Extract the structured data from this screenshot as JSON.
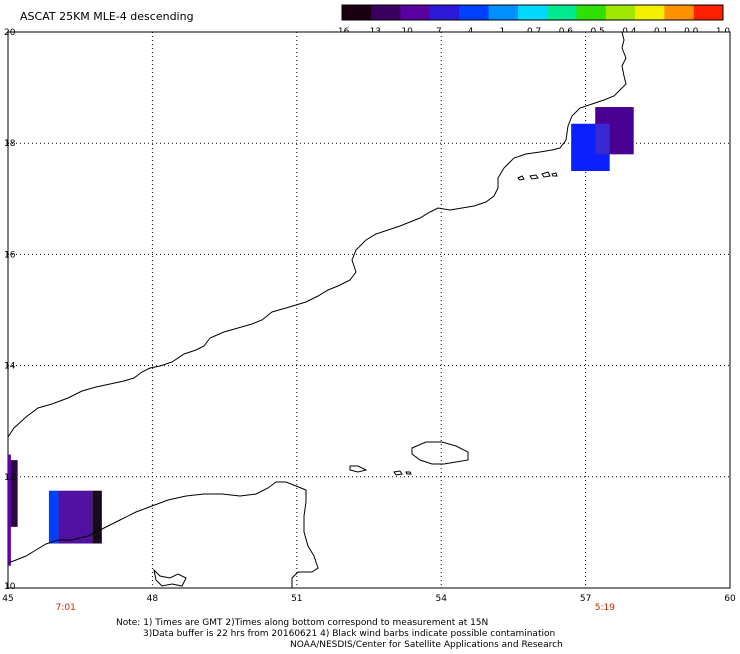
{
  "title": "ASCAT 25KM MLE-4 descending",
  "colorbar": {
    "labels": [
      "-16",
      "-13",
      "-10",
      "-7",
      "-4",
      "-1",
      "-0.7",
      "-0.6",
      "-0.5",
      "-0.4",
      "-0.1",
      "0.0",
      "1.0"
    ],
    "colors": [
      "#1a0010",
      "#3a0060",
      "#5a00a0",
      "#2a1ad8",
      "#0040ff",
      "#0090ff",
      "#00d8ff",
      "#00e890",
      "#30e000",
      "#a0e800",
      "#f0f000",
      "#ff9000",
      "#ff2000"
    ]
  },
  "map": {
    "lon_range": [
      45,
      60
    ],
    "lat_range": [
      10,
      20
    ],
    "x_ticks": [
      "45",
      "48",
      "51",
      "54",
      "57",
      "60"
    ],
    "y_ticks": [
      "20",
      "18",
      "16",
      "14",
      "12",
      "10"
    ],
    "grid": true,
    "times": [
      {
        "label": "7:01",
        "lon": 46.2
      },
      {
        "label": "5:19",
        "lon": 57.4
      }
    ],
    "cells": [
      {
        "lon0": 45.0,
        "lon1": 45.2,
        "lat0": 11.1,
        "lat1": 12.3,
        "color": "#2a0a3c"
      },
      {
        "lon0": 45.0,
        "lon1": 45.06,
        "lat0": 10.4,
        "lat1": 12.4,
        "color": "#6000b0"
      },
      {
        "lon0": 45.85,
        "lon1": 46.05,
        "lat0": 10.8,
        "lat1": 11.75,
        "color": "#0040ff"
      },
      {
        "lon0": 46.05,
        "lon1": 46.75,
        "lat0": 10.8,
        "lat1": 11.75,
        "color": "#5010a0"
      },
      {
        "lon0": 46.75,
        "lon1": 46.95,
        "lat0": 10.8,
        "lat1": 11.75,
        "color": "#1a0a20"
      },
      {
        "lon0": 56.7,
        "lon1": 57.5,
        "lat0": 17.5,
        "lat1": 18.35,
        "color": "#0a20ff"
      },
      {
        "lon0": 57.2,
        "lon1": 58.0,
        "lat0": 17.8,
        "lat1": 18.65,
        "color": "#4a0090"
      },
      {
        "lon0": 57.2,
        "lon1": 57.5,
        "lat0": 17.8,
        "lat1": 18.35,
        "color": "#3a28d0"
      }
    ]
  },
  "notes": [
    "Note: 1) Times are GMT 2)Times along bottom correspond to measurement at 15N",
    "3)Data buffer is 22 hrs from 20160621 4) Black wind barbs indicate possible contamination",
    "NOAA/NESDIS/Center for Satellite Applications and Research"
  ]
}
